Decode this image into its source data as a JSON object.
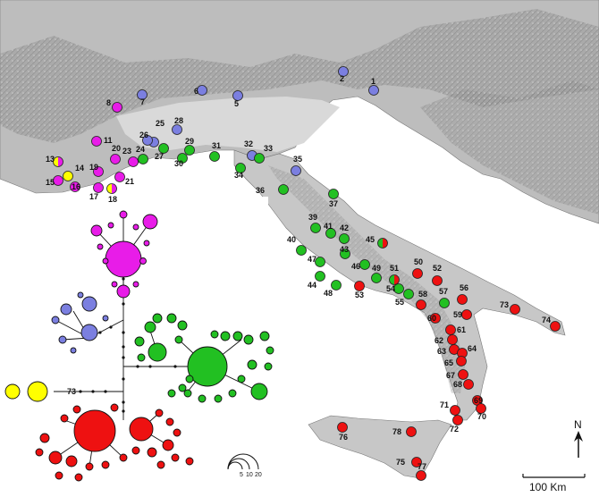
{
  "colors": {
    "blue": "#7b7fe0",
    "magenta": "#e81ce8",
    "green": "#22c022",
    "red": "#ee1111",
    "yellow": "#ffff00"
  },
  "north_label": "N",
  "scale_label": "100 Km",
  "legend_size_labels": [
    "5",
    "10",
    "20"
  ],
  "branch_label": "73",
  "sites": [
    {
      "id": "1",
      "color": "blue"
    },
    {
      "id": "2",
      "color": "blue"
    },
    {
      "id": "5",
      "color": "blue"
    },
    {
      "id": "6",
      "color": "blue"
    },
    {
      "id": "7",
      "color": "blue"
    },
    {
      "id": "8",
      "color": "magenta"
    },
    {
      "id": "11",
      "color": "magenta"
    },
    {
      "id": "13",
      "color": "magenta+yellow"
    },
    {
      "id": "14",
      "color": "yellow"
    },
    {
      "id": "15",
      "color": "magenta"
    },
    {
      "id": "16",
      "color": "magenta"
    },
    {
      "id": "17",
      "color": "magenta"
    },
    {
      "id": "18",
      "color": "magenta+yellow"
    },
    {
      "id": "19",
      "color": "magenta"
    },
    {
      "id": "20",
      "color": "magenta"
    },
    {
      "id": "21",
      "color": "magenta"
    },
    {
      "id": "23",
      "color": "magenta"
    },
    {
      "id": "24",
      "color": "green"
    },
    {
      "id": "25",
      "color": "blue"
    },
    {
      "id": "26",
      "color": "blue"
    },
    {
      "id": "27",
      "color": "green"
    },
    {
      "id": "28",
      "color": "blue"
    },
    {
      "id": "29",
      "color": "green"
    },
    {
      "id": "30",
      "color": "green"
    },
    {
      "id": "31",
      "color": "green"
    },
    {
      "id": "32",
      "color": "blue"
    },
    {
      "id": "33",
      "color": "green"
    },
    {
      "id": "34",
      "color": "green"
    },
    {
      "id": "35",
      "color": "blue"
    },
    {
      "id": "36",
      "color": "green"
    },
    {
      "id": "37",
      "color": "green"
    },
    {
      "id": "39",
      "color": "green"
    },
    {
      "id": "40",
      "color": "green"
    },
    {
      "id": "41",
      "color": "green"
    },
    {
      "id": "42",
      "color": "green"
    },
    {
      "id": "43",
      "color": "green"
    },
    {
      "id": "44",
      "color": "green"
    },
    {
      "id": "45",
      "color": "red+green"
    },
    {
      "id": "46",
      "color": "green"
    },
    {
      "id": "47",
      "color": "green"
    },
    {
      "id": "48",
      "color": "green"
    },
    {
      "id": "49",
      "color": "green"
    },
    {
      "id": "50",
      "color": "red"
    },
    {
      "id": "51",
      "color": "red+green"
    },
    {
      "id": "52",
      "color": "red"
    },
    {
      "id": "53",
      "color": "red"
    },
    {
      "id": "54",
      "color": "green"
    },
    {
      "id": "55",
      "color": "green"
    },
    {
      "id": "56",
      "color": "red"
    },
    {
      "id": "57",
      "color": "green"
    },
    {
      "id": "58",
      "color": "red"
    },
    {
      "id": "59",
      "color": "red"
    },
    {
      "id": "60",
      "color": "red"
    },
    {
      "id": "61",
      "color": "red"
    },
    {
      "id": "62",
      "color": "red"
    },
    {
      "id": "63",
      "color": "red"
    },
    {
      "id": "64",
      "color": "red"
    },
    {
      "id": "65",
      "color": "red"
    },
    {
      "id": "67",
      "color": "red"
    },
    {
      "id": "68",
      "color": "red"
    },
    {
      "id": "69",
      "color": "red"
    },
    {
      "id": "70",
      "color": "red"
    },
    {
      "id": "71",
      "color": "red"
    },
    {
      "id": "72",
      "color": "red"
    },
    {
      "id": "73",
      "color": "red"
    },
    {
      "id": "74",
      "color": "red"
    },
    {
      "id": "75",
      "color": "red"
    },
    {
      "id": "76",
      "color": "red"
    },
    {
      "id": "77",
      "color": "red"
    },
    {
      "id": "78",
      "color": "red"
    }
  ]
}
